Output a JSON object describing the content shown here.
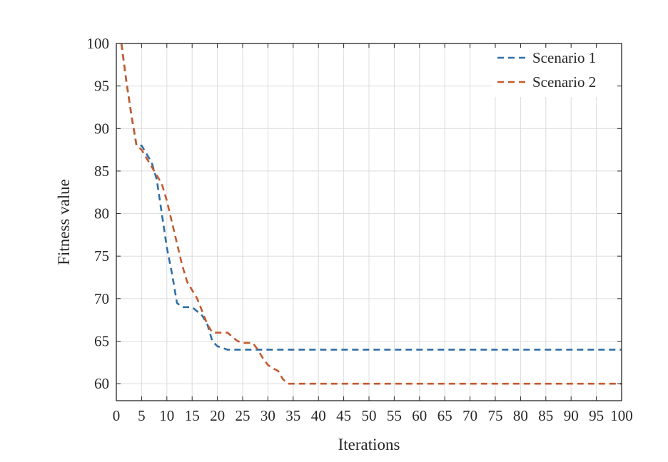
{
  "chart_data": {
    "type": "line",
    "title": "",
    "xlabel": "Iterations",
    "ylabel": "Fitness value",
    "xlim": [
      0,
      100
    ],
    "ylim": [
      58,
      100
    ],
    "xticks": [
      0,
      5,
      10,
      15,
      20,
      25,
      30,
      35,
      40,
      45,
      50,
      55,
      60,
      65,
      70,
      75,
      80,
      85,
      90,
      95,
      100
    ],
    "yticks": [
      60,
      65,
      70,
      75,
      80,
      85,
      90,
      95,
      100
    ],
    "grid": true,
    "legend_position": "top-right",
    "series": [
      {
        "name": "Scenario 1",
        "color": "#2e6fa7",
        "points": [
          [
            1,
            100
          ],
          [
            2,
            95.5
          ],
          [
            3,
            91.5
          ],
          [
            4,
            88
          ],
          [
            5,
            88
          ],
          [
            6,
            87
          ],
          [
            7,
            86
          ],
          [
            8,
            84
          ],
          [
            9,
            80
          ],
          [
            10,
            76
          ],
          [
            11,
            73
          ],
          [
            12,
            69.5
          ],
          [
            13,
            69
          ],
          [
            14,
            69
          ],
          [
            15,
            69
          ],
          [
            16,
            68.5
          ],
          [
            17,
            68
          ],
          [
            18,
            67
          ],
          [
            19,
            65
          ],
          [
            20,
            64.4
          ],
          [
            21,
            64.2
          ],
          [
            22,
            64
          ],
          [
            100,
            64
          ]
        ]
      },
      {
        "name": "Scenario 2",
        "color": "#c55a2f",
        "points": [
          [
            1,
            100
          ],
          [
            2,
            95.5
          ],
          [
            3,
            91.5
          ],
          [
            4,
            88
          ],
          [
            5,
            87.5
          ],
          [
            6,
            86.5
          ],
          [
            7,
            85.5
          ],
          [
            8,
            84.5
          ],
          [
            9,
            83.5
          ],
          [
            10,
            81.5
          ],
          [
            11,
            79
          ],
          [
            12,
            76.5
          ],
          [
            13,
            74
          ],
          [
            14,
            72
          ],
          [
            15,
            71
          ],
          [
            16,
            70
          ],
          [
            17,
            68.5
          ],
          [
            18,
            67
          ],
          [
            19,
            66
          ],
          [
            20,
            66
          ],
          [
            21,
            66
          ],
          [
            22,
            66
          ],
          [
            23,
            65.5
          ],
          [
            24,
            65
          ],
          [
            25,
            64.8
          ],
          [
            26,
            64.8
          ],
          [
            27,
            64.8
          ],
          [
            28,
            64
          ],
          [
            29,
            63
          ],
          [
            30,
            62.2
          ],
          [
            31,
            61.8
          ],
          [
            32,
            61.5
          ],
          [
            33,
            60.5
          ],
          [
            34,
            60
          ],
          [
            100,
            60
          ]
        ]
      }
    ]
  }
}
